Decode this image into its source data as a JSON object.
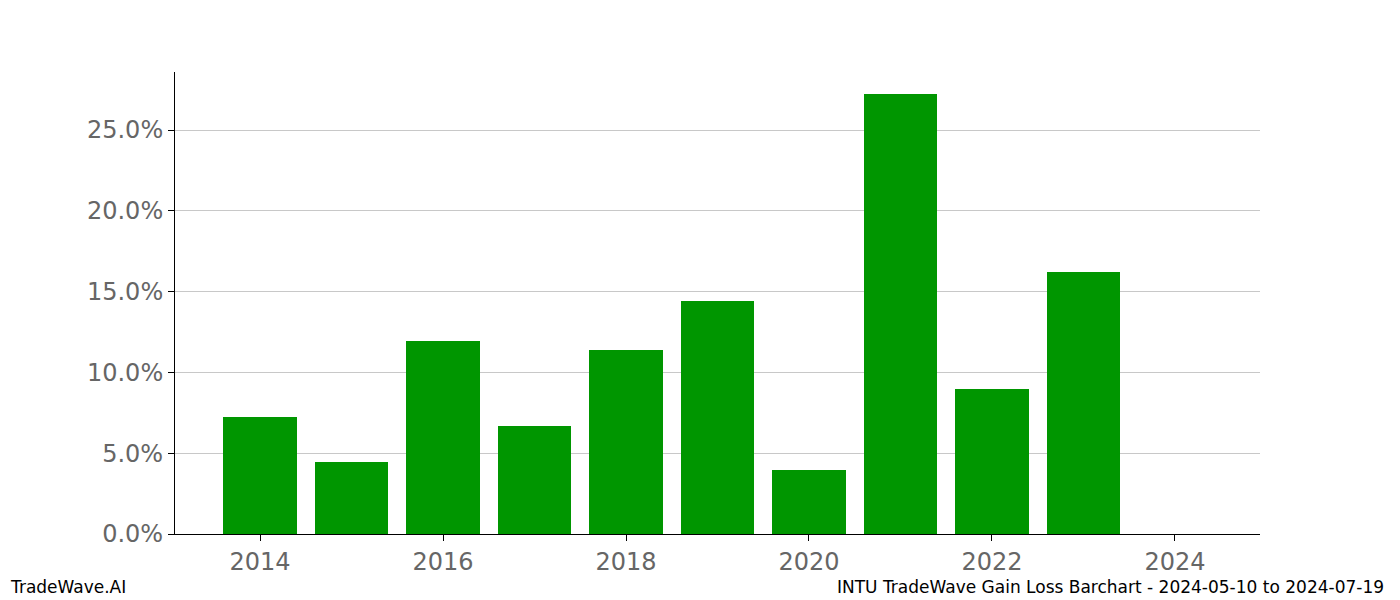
{
  "chart_data": {
    "type": "bar",
    "title": "INTU TradeWave Gain Loss Barchart - 2024-05-10 to 2024-07-19",
    "annotations": [
      "TradeWave.AI"
    ],
    "x": [
      2014,
      2015,
      2016,
      2017,
      2018,
      2019,
      2020,
      2021,
      2022,
      2023,
      2024
    ],
    "values": [
      7.24,
      4.46,
      11.94,
      6.68,
      11.39,
      14.42,
      3.96,
      27.23,
      8.97,
      16.21,
      0
    ],
    "color": "#009600",
    "xlim": [
      2013.07,
      2024.93
    ],
    "xticks": [
      2014,
      2016,
      2018,
      2020,
      2022,
      2024
    ],
    "ylim": [
      0,
      28.59
    ],
    "yticks": [
      {
        "value": 0,
        "label": "0.0%"
      },
      {
        "value": 5,
        "label": "5.0%"
      },
      {
        "value": 10,
        "label": "10.0%"
      },
      {
        "value": 15,
        "label": "15.0%"
      },
      {
        "value": 20,
        "label": "20.0%"
      },
      {
        "value": 25,
        "label": "25.0%"
      }
    ],
    "grid": true
  }
}
